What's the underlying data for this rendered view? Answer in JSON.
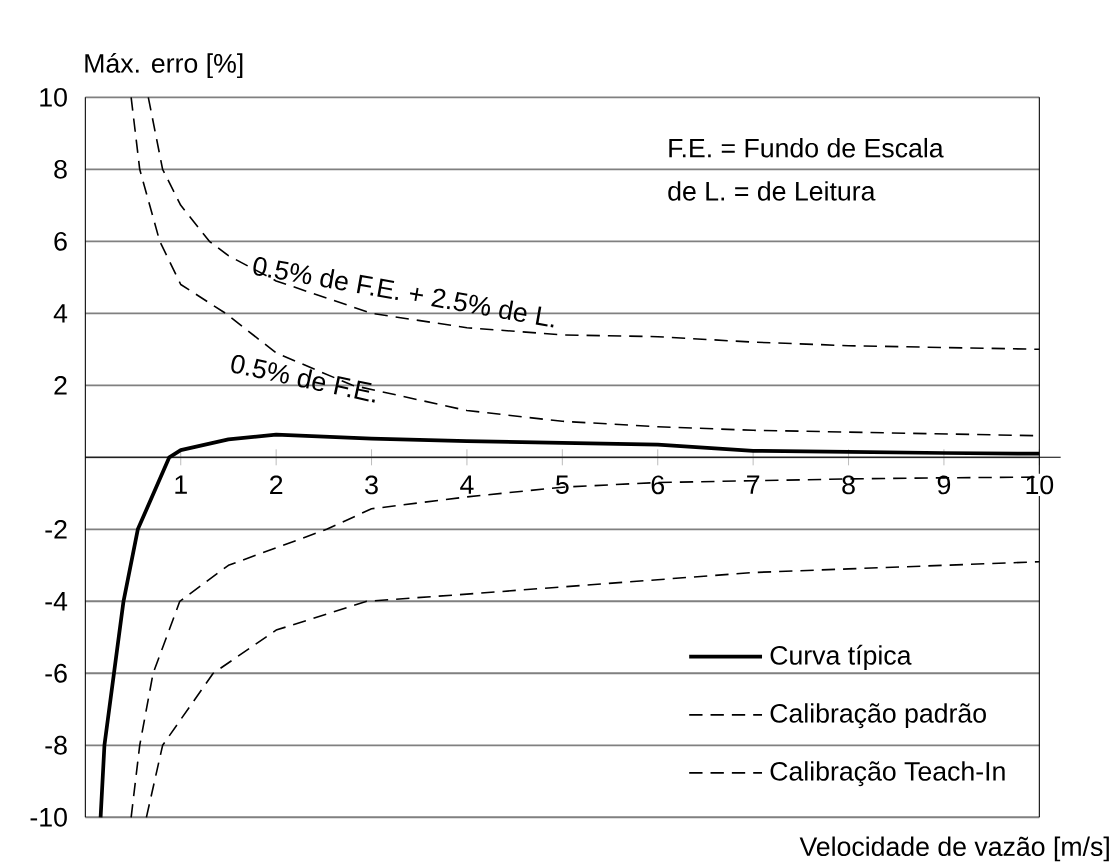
{
  "chart_data": {
    "type": "line",
    "xlabel": "Velocidade de vazão [m/s]",
    "ylabel": "Máx. erro [%]",
    "xlim": [
      0,
      10
    ],
    "ylim": [
      -10,
      10
    ],
    "xticks": [
      1,
      2,
      3,
      4,
      5,
      6,
      7,
      8,
      9,
      10
    ],
    "yticks": [
      -10,
      -8,
      -6,
      -4,
      -2,
      {
        "value": 0,
        "label": null
      },
      2,
      4,
      6,
      8,
      10
    ],
    "grid": "y",
    "legend": "bottom right",
    "series": [
      {
        "name": "Curva típica",
        "color": "#000000",
        "line_style": "solid",
        "x": [
          0.16,
          0.2,
          0.3,
          0.4,
          0.55,
          0.88,
          1,
          1.5,
          2,
          3,
          4,
          5,
          6,
          7,
          8,
          9,
          10
        ],
        "values": [
          -10,
          -8,
          -6,
          -4,
          -2,
          0,
          0.2,
          0.5,
          0.63,
          0.52,
          0.45,
          0.4,
          0.35,
          0.18,
          0.15,
          0.12,
          0.1
        ]
      },
      {
        "name": "Calibração padrão",
        "color": "#000000",
        "line_style": "dashed",
        "x": [
          0.66,
          0.81,
          1,
          1.3,
          1.5,
          2,
          3,
          4,
          5,
          6,
          7,
          8,
          9,
          10
        ],
        "values": [
          10,
          8,
          7,
          6,
          5.6,
          4.9,
          4,
          3.6,
          3.4,
          3.35,
          3.2,
          3.1,
          3.05,
          3
        ]
      },
      {
        "color": "#000000",
        "line_style": "dashed",
        "x": [
          0.64,
          0.81,
          1.34,
          2,
          2.95,
          4,
          5,
          6,
          7,
          8,
          9,
          10
        ],
        "values": [
          -10,
          -8,
          -6,
          -4.8,
          -4,
          -3.8,
          -3.6,
          -3.4,
          -3.2,
          -3.1,
          -3,
          -2.9
        ]
      },
      {
        "name": "Calibração Teach-In",
        "color": "#000000",
        "line_style": "dashed",
        "x": [
          0.48,
          0.57,
          0.78,
          1,
          1.47,
          2,
          2.8,
          4,
          5,
          6,
          7,
          8,
          9,
          10
        ],
        "values": [
          10,
          8,
          6,
          4.8,
          4,
          2.9,
          2,
          1.3,
          1,
          0.85,
          0.75,
          0.7,
          0.65,
          0.6
        ]
      },
      {
        "color": "#000000",
        "line_style": "dashed",
        "x": [
          0.48,
          0.57,
          0.71,
          0.99,
          1.5,
          2.53,
          3,
          4,
          5,
          6,
          7,
          8,
          9,
          10
        ],
        "values": [
          -10,
          -8,
          -6,
          -4,
          -3,
          -2,
          -1.43,
          -1.1,
          -0.83,
          -0.7,
          -0.65,
          -0.6,
          -0.57,
          -0.55
        ]
      }
    ],
    "annotations": [
      "F.E. = Fundo de Escala",
      "de L. = de Leitura",
      "0.5% de F.E. + 2.5% de L.",
      "0.5% de F.E."
    ]
  }
}
